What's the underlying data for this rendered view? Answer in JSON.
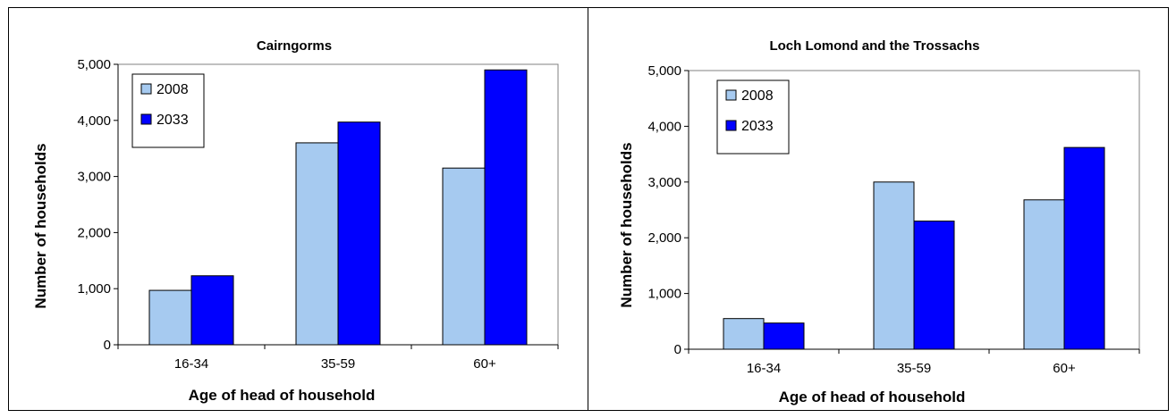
{
  "colors": {
    "series_2008": "#a6caf0",
    "series_2033": "#0000ff",
    "axis": "#000000"
  },
  "chart_data": [
    {
      "type": "bar",
      "title": "Cairngorms",
      "xlabel": "Age of head of household",
      "ylabel": "Number of households",
      "categories": [
        "16-34",
        "35-59",
        "60+"
      ],
      "series": [
        {
          "name": "2008",
          "values": [
            970,
            3600,
            3150
          ]
        },
        {
          "name": "2033",
          "values": [
            1230,
            3970,
            4900
          ]
        }
      ],
      "ylim": [
        0,
        5000
      ],
      "yticks": [
        0,
        1000,
        2000,
        3000,
        4000,
        5000
      ],
      "ytick_labels": [
        "0",
        "1,000",
        "2,000",
        "3,000",
        "4,000",
        "5,000"
      ],
      "grid": false,
      "legend": "top-left"
    },
    {
      "type": "bar",
      "title": "Loch Lomond and the Trossachs",
      "xlabel": "Age of head of household",
      "ylabel": "Number of households",
      "categories": [
        "16-34",
        "35-59",
        "60+"
      ],
      "series": [
        {
          "name": "2008",
          "values": [
            550,
            3000,
            2680
          ]
        },
        {
          "name": "2033",
          "values": [
            470,
            2300,
            3620
          ]
        }
      ],
      "ylim": [
        0,
        5000
      ],
      "yticks": [
        0,
        1000,
        2000,
        3000,
        4000,
        5000
      ],
      "ytick_labels": [
        "0",
        "1,000",
        "2,000",
        "3,000",
        "4,000",
        "5,000"
      ],
      "grid": false,
      "legend": "top-left"
    }
  ]
}
